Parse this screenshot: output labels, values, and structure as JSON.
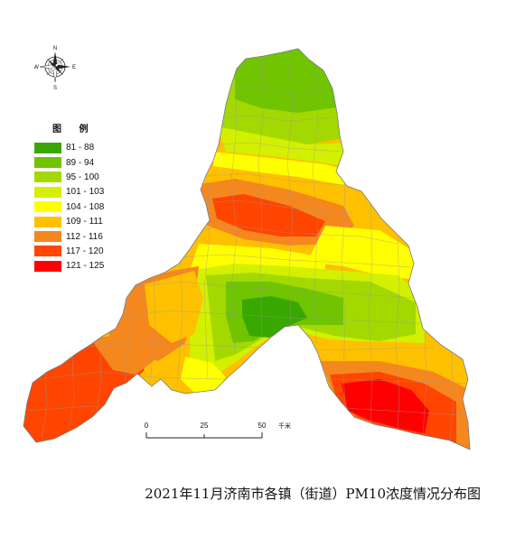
{
  "title": "2021年11月济南市各镇（街道）PM10浓度情况分布图",
  "compass": {
    "north": "N",
    "south": "S",
    "east": "E",
    "west": "W",
    "icon": "compass-rose-icon"
  },
  "legend": {
    "title": "图 例",
    "items": [
      {
        "label": "81 - 88",
        "color": "#38a800"
      },
      {
        "label": "89 - 94",
        "color": "#70c400"
      },
      {
        "label": "95 - 100",
        "color": "#a3d900"
      },
      {
        "label": "101 - 103",
        "color": "#d3f000"
      },
      {
        "label": "104 - 108",
        "color": "#ffff00"
      },
      {
        "label": "109 - 111",
        "color": "#ffc000"
      },
      {
        "label": "112 - 116",
        "color": "#f5871f"
      },
      {
        "label": "117 - 120",
        "color": "#ff4500"
      },
      {
        "label": "121 - 125",
        "color": "#ff0000"
      }
    ]
  },
  "scale_bar": {
    "ticks": [
      "0",
      "25",
      "50"
    ],
    "unit": "千米"
  }
}
